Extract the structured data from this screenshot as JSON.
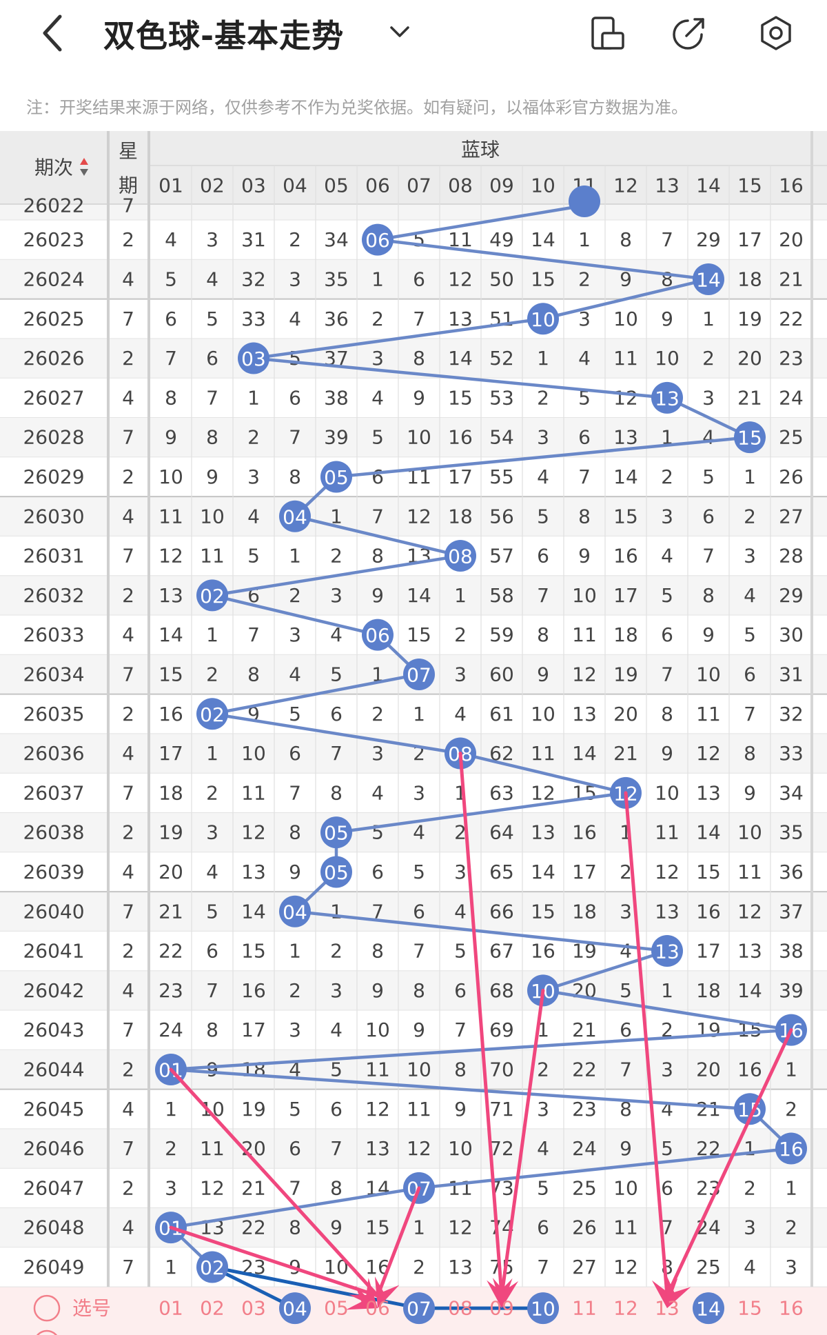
{
  "header": {
    "title": "双色球-基本走势",
    "note": "注：开奖结果来源于网络，仅供参考不作为兑奖依据。如有疑问，以福体彩官方数据为准。"
  },
  "table": {
    "col_issue": "期次",
    "col_week_1": "星",
    "col_week_2": "期",
    "group_label": "蓝球",
    "numbers": [
      "01",
      "02",
      "03",
      "04",
      "05",
      "06",
      "07",
      "08",
      "09",
      "10",
      "11",
      "12",
      "13",
      "14",
      "15",
      "16"
    ],
    "partial_row": {
      "issue": "26022",
      "week": "7"
    },
    "rows": [
      {
        "issue": "26023",
        "week": "2",
        "cells": [
          "4",
          "3",
          "31",
          "2",
          "34",
          "06",
          "5",
          "11",
          "49",
          "14",
          "1",
          "8",
          "7",
          "29",
          "17",
          "20"
        ],
        "hit": 6
      },
      {
        "issue": "26024",
        "week": "4",
        "cells": [
          "5",
          "4",
          "32",
          "3",
          "35",
          "1",
          "6",
          "12",
          "50",
          "15",
          "2",
          "9",
          "8",
          "14",
          "18",
          "21"
        ],
        "hit": 14
      },
      {
        "issue": "26025",
        "week": "7",
        "cells": [
          "6",
          "5",
          "33",
          "4",
          "36",
          "2",
          "7",
          "13",
          "51",
          "10",
          "3",
          "10",
          "9",
          "1",
          "19",
          "22"
        ],
        "hit": 10
      },
      {
        "issue": "26026",
        "week": "2",
        "cells": [
          "7",
          "6",
          "03",
          "5",
          "37",
          "3",
          "8",
          "14",
          "52",
          "1",
          "4",
          "11",
          "10",
          "2",
          "20",
          "23"
        ],
        "hit": 3
      },
      {
        "issue": "26027",
        "week": "4",
        "cells": [
          "8",
          "7",
          "1",
          "6",
          "38",
          "4",
          "9",
          "15",
          "53",
          "2",
          "5",
          "12",
          "13",
          "3",
          "21",
          "24"
        ],
        "hit": 13
      },
      {
        "issue": "26028",
        "week": "7",
        "cells": [
          "9",
          "8",
          "2",
          "7",
          "39",
          "5",
          "10",
          "16",
          "54",
          "3",
          "6",
          "13",
          "1",
          "4",
          "15",
          "25"
        ],
        "hit": 15
      },
      {
        "issue": "26029",
        "week": "2",
        "cells": [
          "10",
          "9",
          "3",
          "8",
          "05",
          "6",
          "11",
          "17",
          "55",
          "4",
          "7",
          "14",
          "2",
          "5",
          "1",
          "26"
        ],
        "hit": 5
      },
      {
        "issue": "26030",
        "week": "4",
        "cells": [
          "11",
          "10",
          "4",
          "04",
          "1",
          "7",
          "12",
          "18",
          "56",
          "5",
          "8",
          "15",
          "3",
          "6",
          "2",
          "27"
        ],
        "hit": 4
      },
      {
        "issue": "26031",
        "week": "7",
        "cells": [
          "12",
          "11",
          "5",
          "1",
          "2",
          "8",
          "13",
          "08",
          "57",
          "6",
          "9",
          "16",
          "4",
          "7",
          "3",
          "28"
        ],
        "hit": 8
      },
      {
        "issue": "26032",
        "week": "2",
        "cells": [
          "13",
          "02",
          "6",
          "2",
          "3",
          "9",
          "14",
          "1",
          "58",
          "7",
          "10",
          "17",
          "5",
          "8",
          "4",
          "29"
        ],
        "hit": 2
      },
      {
        "issue": "26033",
        "week": "4",
        "cells": [
          "14",
          "1",
          "7",
          "3",
          "4",
          "06",
          "15",
          "2",
          "59",
          "8",
          "11",
          "18",
          "6",
          "9",
          "5",
          "30"
        ],
        "hit": 6
      },
      {
        "issue": "26034",
        "week": "7",
        "cells": [
          "15",
          "2",
          "8",
          "4",
          "5",
          "1",
          "07",
          "3",
          "60",
          "9",
          "12",
          "19",
          "7",
          "10",
          "6",
          "31"
        ],
        "hit": 7
      },
      {
        "issue": "26035",
        "week": "2",
        "cells": [
          "16",
          "02",
          "9",
          "5",
          "6",
          "2",
          "1",
          "4",
          "61",
          "10",
          "13",
          "20",
          "8",
          "11",
          "7",
          "32"
        ],
        "hit": 2
      },
      {
        "issue": "26036",
        "week": "4",
        "cells": [
          "17",
          "1",
          "10",
          "6",
          "7",
          "3",
          "2",
          "08",
          "62",
          "11",
          "14",
          "21",
          "9",
          "12",
          "8",
          "33"
        ],
        "hit": 8
      },
      {
        "issue": "26037",
        "week": "7",
        "cells": [
          "18",
          "2",
          "11",
          "7",
          "8",
          "4",
          "3",
          "1",
          "63",
          "12",
          "15",
          "12",
          "10",
          "13",
          "9",
          "34"
        ],
        "hit": 12
      },
      {
        "issue": "26038",
        "week": "2",
        "cells": [
          "19",
          "3",
          "12",
          "8",
          "05",
          "5",
          "4",
          "2",
          "64",
          "13",
          "16",
          "1",
          "11",
          "14",
          "10",
          "35"
        ],
        "hit": 5
      },
      {
        "issue": "26039",
        "week": "4",
        "cells": [
          "20",
          "4",
          "13",
          "9",
          "05",
          "6",
          "5",
          "3",
          "65",
          "14",
          "17",
          "2",
          "12",
          "15",
          "11",
          "36"
        ],
        "hit": 5
      },
      {
        "issue": "26040",
        "week": "7",
        "cells": [
          "21",
          "5",
          "14",
          "04",
          "1",
          "7",
          "6",
          "4",
          "66",
          "15",
          "18",
          "3",
          "13",
          "16",
          "12",
          "37"
        ],
        "hit": 4
      },
      {
        "issue": "26041",
        "week": "2",
        "cells": [
          "22",
          "6",
          "15",
          "1",
          "2",
          "8",
          "7",
          "5",
          "67",
          "16",
          "19",
          "4",
          "13",
          "17",
          "13",
          "38"
        ],
        "hit": 13
      },
      {
        "issue": "26042",
        "week": "4",
        "cells": [
          "23",
          "7",
          "16",
          "2",
          "3",
          "9",
          "8",
          "6",
          "68",
          "10",
          "20",
          "5",
          "1",
          "18",
          "14",
          "39"
        ],
        "hit": 10
      },
      {
        "issue": "26043",
        "week": "7",
        "cells": [
          "24",
          "8",
          "17",
          "3",
          "4",
          "10",
          "9",
          "7",
          "69",
          "1",
          "21",
          "6",
          "2",
          "19",
          "15",
          "16"
        ],
        "hit": 16
      },
      {
        "issue": "26044",
        "week": "2",
        "cells": [
          "01",
          "9",
          "18",
          "4",
          "5",
          "11",
          "10",
          "8",
          "70",
          "2",
          "22",
          "7",
          "3",
          "20",
          "16",
          "1"
        ],
        "hit": 1
      },
      {
        "issue": "26045",
        "week": "4",
        "cells": [
          "1",
          "10",
          "19",
          "5",
          "6",
          "12",
          "11",
          "9",
          "71",
          "3",
          "23",
          "8",
          "4",
          "21",
          "15",
          "2"
        ],
        "hit": 15
      },
      {
        "issue": "26046",
        "week": "7",
        "cells": [
          "2",
          "11",
          "20",
          "6",
          "7",
          "13",
          "12",
          "10",
          "72",
          "4",
          "24",
          "9",
          "5",
          "22",
          "1",
          "16"
        ],
        "hit": 16
      },
      {
        "issue": "26047",
        "week": "2",
        "cells": [
          "3",
          "12",
          "21",
          "7",
          "8",
          "14",
          "07",
          "11",
          "73",
          "5",
          "25",
          "10",
          "6",
          "23",
          "2",
          "1"
        ],
        "hit": 7
      },
      {
        "issue": "26048",
        "week": "4",
        "cells": [
          "01",
          "13",
          "22",
          "8",
          "9",
          "15",
          "1",
          "12",
          "74",
          "6",
          "26",
          "11",
          "7",
          "24",
          "3",
          "2"
        ],
        "hit": 1
      },
      {
        "issue": "26049",
        "week": "7",
        "cells": [
          "1",
          "02",
          "23",
          "9",
          "10",
          "16",
          "2",
          "13",
          "75",
          "7",
          "27",
          "12",
          "8",
          "25",
          "4",
          "3"
        ],
        "hit": 2
      }
    ],
    "pick_row": {
      "label": "选号",
      "selected": [
        "04",
        "07",
        "10",
        "14"
      ]
    }
  },
  "colors": {
    "ball": "#5b7fcc",
    "trend_line": "#6a88c8",
    "pink_arrow": "#f0477e",
    "pick_bg": "#fdeeee",
    "pick_text": "#f27f8a",
    "selected_line": "#1a5fb4"
  }
}
